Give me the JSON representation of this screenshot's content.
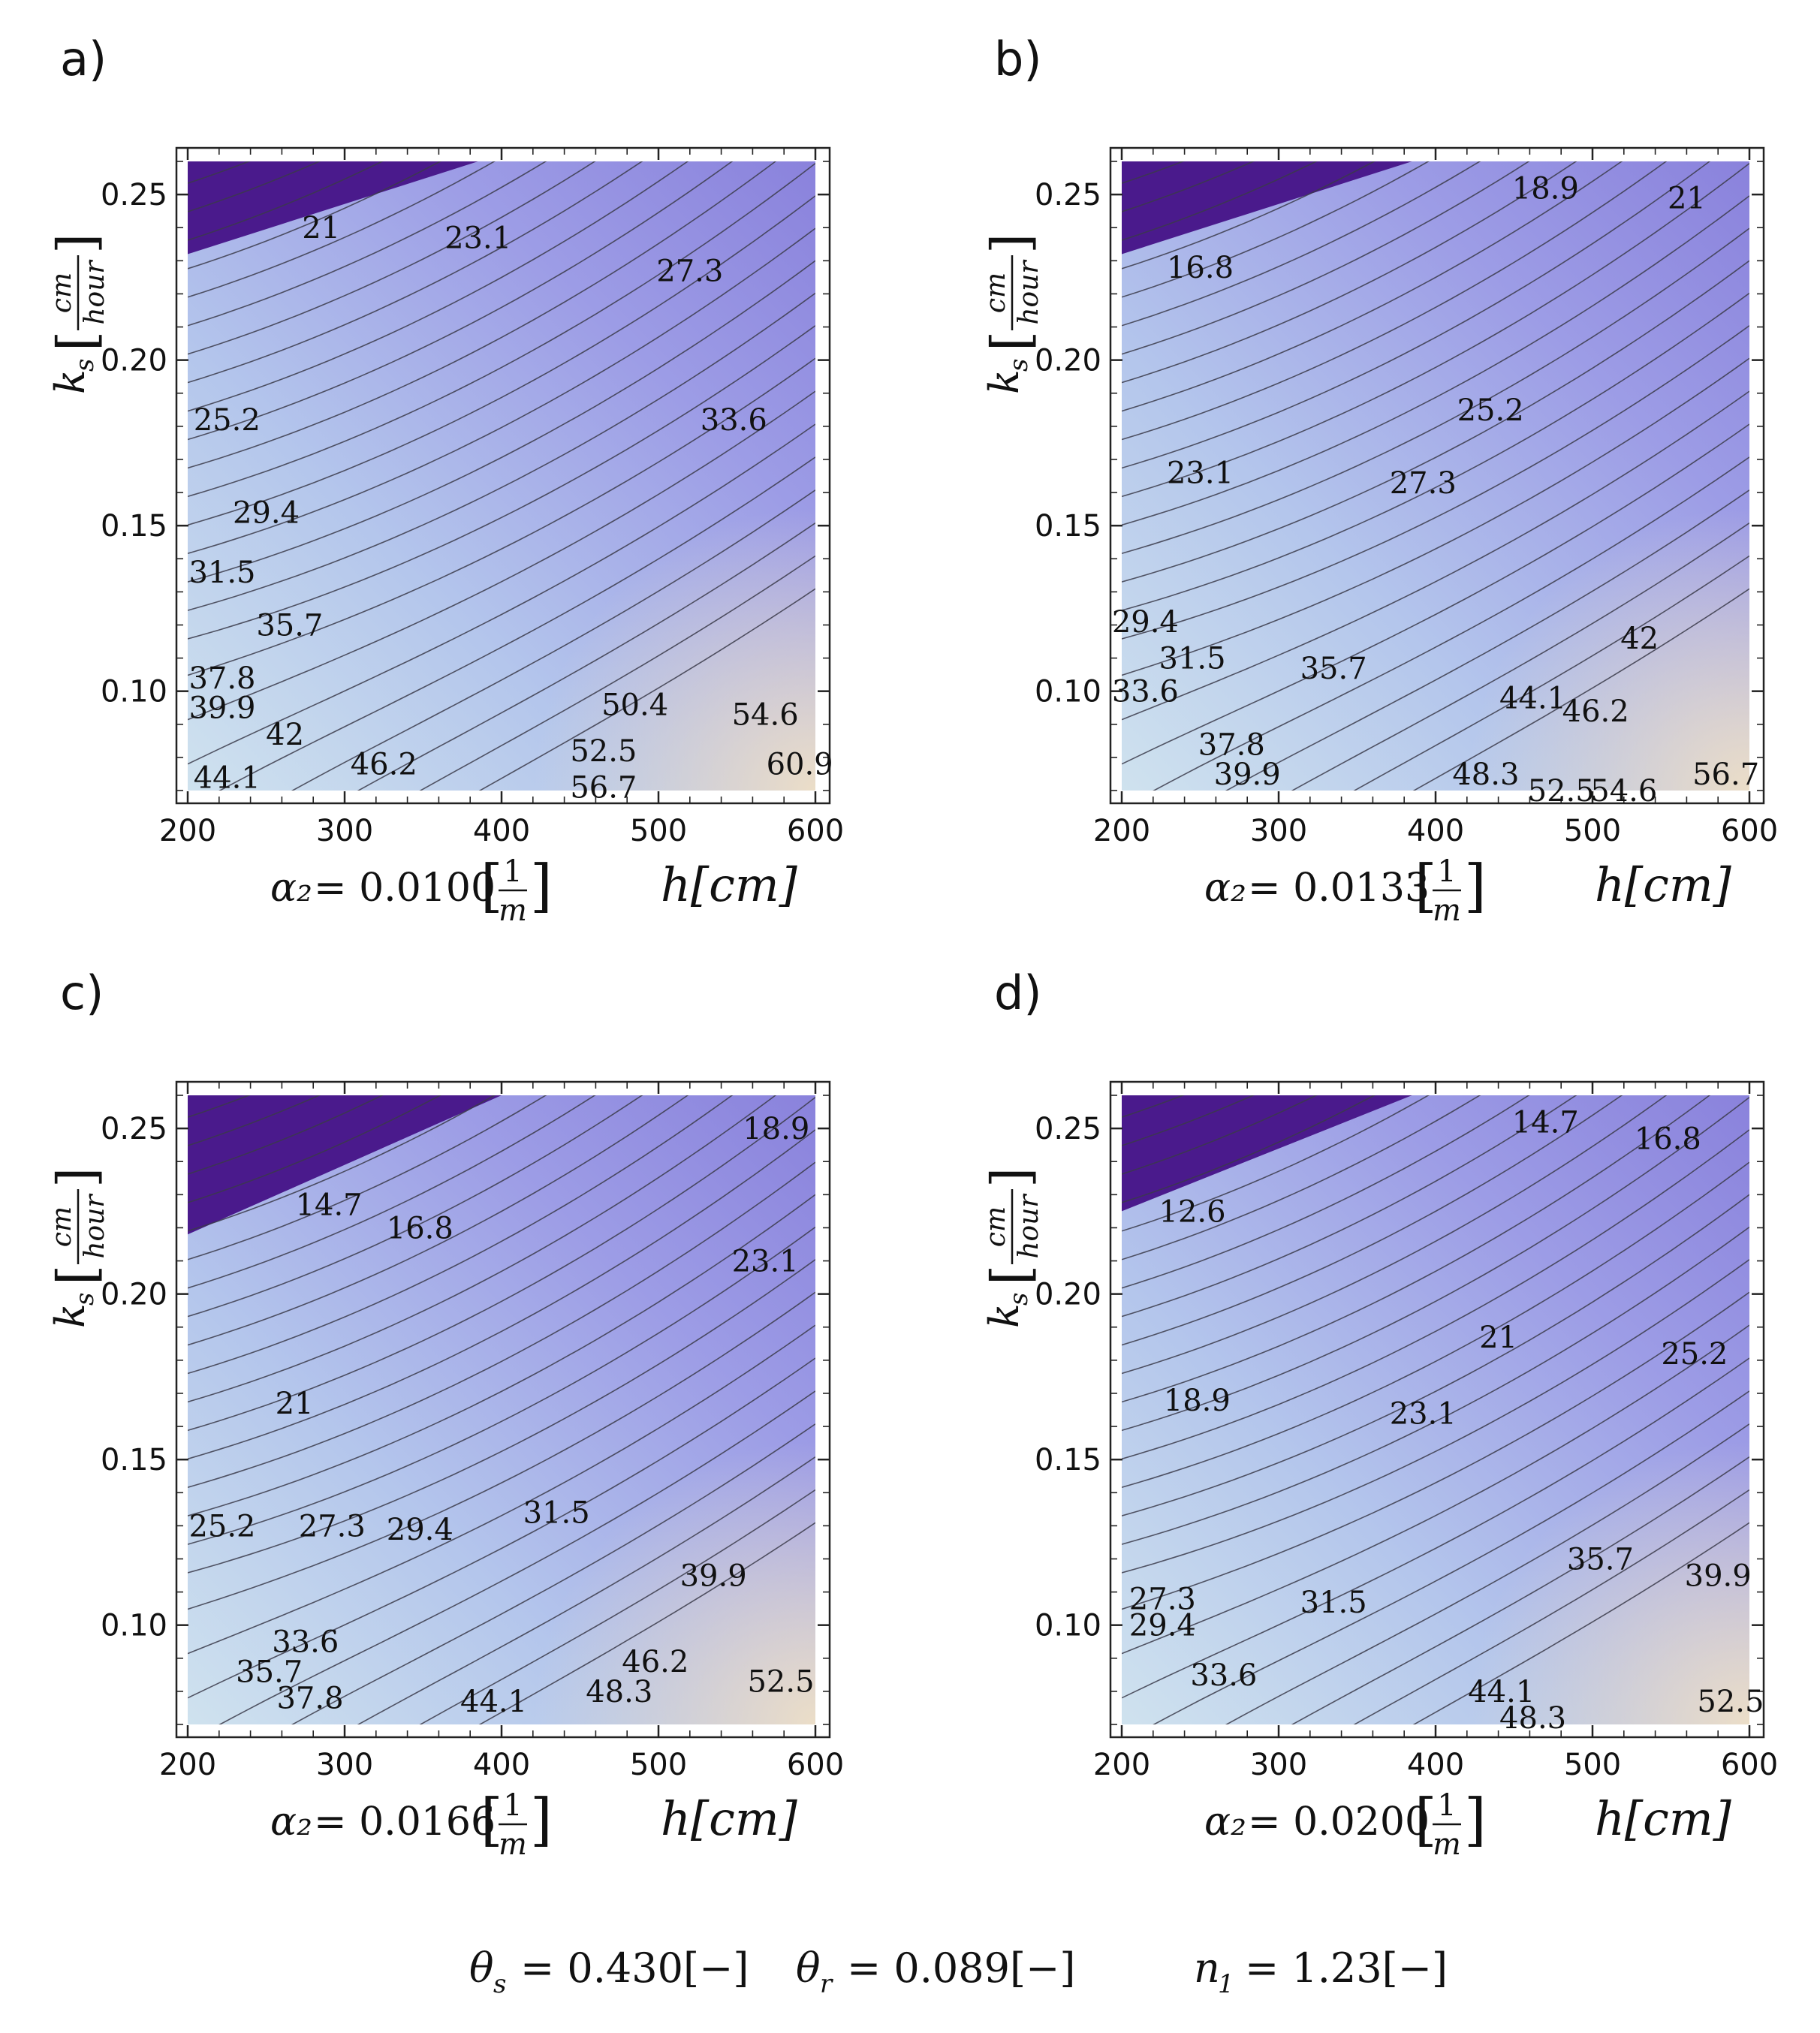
{
  "chart_data": [
    {
      "id": "a",
      "type": "contour",
      "panel_label": "a)",
      "x_ticks": [
        "200",
        "300",
        "400",
        "500",
        "600"
      ],
      "y_ticks": [
        "0.25",
        "0.20",
        "0.15",
        "0.10"
      ],
      "x_range": [
        200,
        600
      ],
      "y_range": [
        0.07,
        0.26
      ],
      "caption_param": "α₂",
      "caption_value": "= 0.0100",
      "caption_unit_num": "1",
      "caption_unit_den": "m",
      "xlabel": "h[cm]",
      "ylabel_symbol": "k",
      "ylabel_sub": "s",
      "ylabel_unit_num": "cm",
      "ylabel_unit_den": "hour",
      "level_labels": [
        {
          "text": "21",
          "x": 285,
          "y": 0.24
        },
        {
          "text": "23.1",
          "x": 385,
          "y": 0.237
        },
        {
          "text": "27.3",
          "x": 520,
          "y": 0.227
        },
        {
          "text": "25.2",
          "x": 225,
          "y": 0.182
        },
        {
          "text": "33.6",
          "x": 548,
          "y": 0.182
        },
        {
          "text": "29.4",
          "x": 250,
          "y": 0.154
        },
        {
          "text": "31.5",
          "x": 222,
          "y": 0.136
        },
        {
          "text": "35.7",
          "x": 265,
          "y": 0.12
        },
        {
          "text": "37.8",
          "x": 222,
          "y": 0.104
        },
        {
          "text": "39.9",
          "x": 222,
          "y": 0.095
        },
        {
          "text": "42",
          "x": 262,
          "y": 0.087
        },
        {
          "text": "44.1",
          "x": 225,
          "y": 0.074
        },
        {
          "text": "46.2",
          "x": 325,
          "y": 0.078
        },
        {
          "text": "50.4",
          "x": 485,
          "y": 0.096
        },
        {
          "text": "54.6",
          "x": 568,
          "y": 0.093
        },
        {
          "text": "52.5",
          "x": 465,
          "y": 0.082
        },
        {
          "text": "60.9",
          "x": 590,
          "y": 0.078
        },
        {
          "text": "56.7",
          "x": 465,
          "y": 0.071
        }
      ]
    },
    {
      "id": "b",
      "type": "contour",
      "panel_label": "b)",
      "x_ticks": [
        "200",
        "300",
        "400",
        "500",
        "600"
      ],
      "y_ticks": [
        "0.25",
        "0.20",
        "0.15",
        "0.10"
      ],
      "x_range": [
        200,
        600
      ],
      "y_range": [
        0.07,
        0.26
      ],
      "caption_param": "α₂",
      "caption_value": "= 0.0133",
      "caption_unit_num": "1",
      "caption_unit_den": "m",
      "xlabel": "h[cm]",
      "ylabel_symbol": "k",
      "ylabel_sub": "s",
      "ylabel_unit_num": "cm",
      "ylabel_unit_den": "hour",
      "level_labels": [
        {
          "text": "18.9",
          "x": 470,
          "y": 0.252
        },
        {
          "text": "21",
          "x": 560,
          "y": 0.249
        },
        {
          "text": "16.8",
          "x": 250,
          "y": 0.228
        },
        {
          "text": "25.2",
          "x": 435,
          "y": 0.185
        },
        {
          "text": "23.1",
          "x": 250,
          "y": 0.166
        },
        {
          "text": "27.3",
          "x": 392,
          "y": 0.163
        },
        {
          "text": "29.4",
          "x": 215,
          "y": 0.121
        },
        {
          "text": "42",
          "x": 530,
          "y": 0.116
        },
        {
          "text": "31.5",
          "x": 245,
          "y": 0.11
        },
        {
          "text": "35.7",
          "x": 335,
          "y": 0.107
        },
        {
          "text": "33.6",
          "x": 215,
          "y": 0.1
        },
        {
          "text": "44.1",
          "x": 462,
          "y": 0.098
        },
        {
          "text": "46.2",
          "x": 502,
          "y": 0.094
        },
        {
          "text": "37.8",
          "x": 270,
          "y": 0.084
        },
        {
          "text": "39.9",
          "x": 280,
          "y": 0.075
        },
        {
          "text": "48.3",
          "x": 432,
          "y": 0.075
        },
        {
          "text": "52.5",
          "x": 480,
          "y": 0.07
        },
        {
          "text": "54.6",
          "x": 520,
          "y": 0.07
        },
        {
          "text": "56.7",
          "x": 585,
          "y": 0.075
        }
      ]
    },
    {
      "id": "c",
      "type": "contour",
      "panel_label": "c)",
      "x_ticks": [
        "200",
        "300",
        "400",
        "500",
        "600"
      ],
      "y_ticks": [
        "0.25",
        "0.20",
        "0.15",
        "0.10"
      ],
      "x_range": [
        200,
        600
      ],
      "y_range": [
        0.07,
        0.26
      ],
      "caption_param": "α₂",
      "caption_value": "= 0.0166",
      "caption_unit_num": "1",
      "caption_unit_den": "m",
      "xlabel": "h[cm]",
      "ylabel_symbol": "k",
      "ylabel_sub": "s",
      "ylabel_unit_num": "cm",
      "ylabel_unit_den": "hour",
      "level_labels": [
        {
          "text": "18.9",
          "x": 575,
          "y": 0.25
        },
        {
          "text": "14.7",
          "x": 290,
          "y": 0.227
        },
        {
          "text": "16.8",
          "x": 348,
          "y": 0.22
        },
        {
          "text": "23.1",
          "x": 568,
          "y": 0.21
        },
        {
          "text": "21",
          "x": 268,
          "y": 0.167
        },
        {
          "text": "31.5",
          "x": 435,
          "y": 0.134
        },
        {
          "text": "25.2",
          "x": 222,
          "y": 0.13
        },
        {
          "text": "27.3",
          "x": 292,
          "y": 0.13
        },
        {
          "text": "29.4",
          "x": 348,
          "y": 0.129
        },
        {
          "text": "39.9",
          "x": 535,
          "y": 0.115
        },
        {
          "text": "33.6",
          "x": 275,
          "y": 0.095
        },
        {
          "text": "35.7",
          "x": 252,
          "y": 0.086
        },
        {
          "text": "46.2",
          "x": 498,
          "y": 0.089
        },
        {
          "text": "37.8",
          "x": 278,
          "y": 0.078
        },
        {
          "text": "48.3",
          "x": 475,
          "y": 0.08
        },
        {
          "text": "44.1",
          "x": 395,
          "y": 0.077
        },
        {
          "text": "52.5",
          "x": 578,
          "y": 0.083
        }
      ]
    },
    {
      "id": "d",
      "type": "contour",
      "panel_label": "d)",
      "x_ticks": [
        "200",
        "300",
        "400",
        "500",
        "600"
      ],
      "y_ticks": [
        "0.25",
        "0.20",
        "0.15",
        "0.10"
      ],
      "x_range": [
        200,
        600
      ],
      "y_range": [
        0.07,
        0.26
      ],
      "caption_param": "α₂",
      "caption_value": "= 0.0200",
      "caption_unit_num": "1",
      "caption_unit_den": "m",
      "xlabel": "h[cm]",
      "ylabel_symbol": "k",
      "ylabel_sub": "s",
      "ylabel_unit_num": "cm",
      "ylabel_unit_den": "hour",
      "level_labels": [
        {
          "text": "14.7",
          "x": 470,
          "y": 0.252
        },
        {
          "text": "16.8",
          "x": 548,
          "y": 0.247
        },
        {
          "text": "12.6",
          "x": 245,
          "y": 0.225
        },
        {
          "text": "21",
          "x": 440,
          "y": 0.187
        },
        {
          "text": "25.2",
          "x": 565,
          "y": 0.182
        },
        {
          "text": "18.9",
          "x": 248,
          "y": 0.168
        },
        {
          "text": "23.1",
          "x": 392,
          "y": 0.164
        },
        {
          "text": "35.7",
          "x": 505,
          "y": 0.12
        },
        {
          "text": "39.9",
          "x": 580,
          "y": 0.115
        },
        {
          "text": "27.3",
          "x": 226,
          "y": 0.108
        },
        {
          "text": "31.5",
          "x": 335,
          "y": 0.107
        },
        {
          "text": "29.4",
          "x": 226,
          "y": 0.1
        },
        {
          "text": "33.6",
          "x": 265,
          "y": 0.085
        },
        {
          "text": "44.1",
          "x": 442,
          "y": 0.08
        },
        {
          "text": "48.3",
          "x": 462,
          "y": 0.072
        },
        {
          "text": "52.5",
          "x": 588,
          "y": 0.077
        }
      ]
    }
  ],
  "footer": {
    "theta_s_symbol": "θ",
    "theta_s_sub": "s",
    "theta_s_value": "= 0.430[−]",
    "theta_r_symbol": "θ",
    "theta_r_sub": "r",
    "theta_r_value": "= 0.089[−]",
    "n1_symbol": "n",
    "n1_sub": "1",
    "n1_value": "= 1.23[−]"
  }
}
